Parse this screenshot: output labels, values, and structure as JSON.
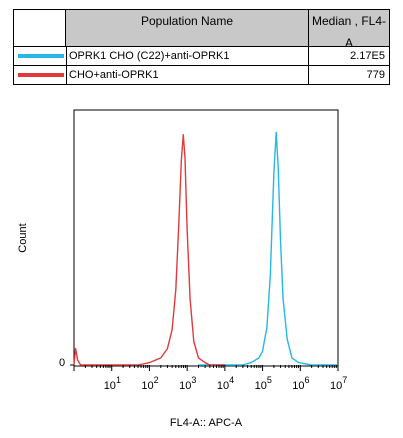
{
  "legend_table": {
    "header_name": "Population Name",
    "header_value": "Median , FL4-A",
    "rows": [
      {
        "name": "OPRK1 CHO (C22)+anti-OPRK1",
        "value": "2.17E5",
        "color": "#25b8e6"
      },
      {
        "name": "CHO+anti-OPRK1",
        "value": "779",
        "color": "#e03a3a"
      }
    ]
  },
  "chart_data": {
    "type": "line",
    "title": "",
    "xlabel": "FL4-A:: APC-A",
    "ylabel": "Count",
    "x_scale": "log",
    "xlim": [
      1,
      10000000
    ],
    "ylim": [
      0,
      100
    ],
    "y_tick_labels": [
      "0"
    ],
    "x_tick_labels": [
      {
        "base": "10",
        "exp": "1"
      },
      {
        "base": "10",
        "exp": "2"
      },
      {
        "base": "10",
        "exp": "3"
      },
      {
        "base": "10",
        "exp": "4"
      },
      {
        "base": "10",
        "exp": "5"
      },
      {
        "base": "10",
        "exp": "6"
      },
      {
        "base": "10",
        "exp": "7"
      }
    ],
    "series": [
      {
        "name": "OPRK1 CHO (C22)+anti-OPRK1",
        "color": "#25b8e6",
        "x": [
          2000,
          30000,
          50000,
          80000,
          100000,
          130000,
          160000,
          200000,
          230000,
          260000,
          300000,
          350000,
          450000,
          600000,
          900000,
          2000000,
          10000000
        ],
        "y": [
          0,
          0,
          1,
          3,
          6,
          16,
          38,
          82,
          99,
          84,
          52,
          28,
          11,
          3,
          1,
          0,
          0
        ]
      },
      {
        "name": "CHO+anti-OPRK1",
        "color": "#e03a3a",
        "x": [
          1,
          1.1,
          1.25,
          1.5,
          10,
          50,
          100,
          200,
          300,
          400,
          500,
          600,
          700,
          790,
          880,
          1000,
          1200,
          1500,
          2000,
          3000,
          4000,
          6000,
          10000
        ],
        "y": [
          0,
          7,
          2,
          0,
          0,
          0,
          1,
          3,
          7,
          15,
          32,
          60,
          87,
          98,
          88,
          58,
          28,
          10,
          3,
          1,
          0,
          0,
          0
        ]
      }
    ]
  }
}
